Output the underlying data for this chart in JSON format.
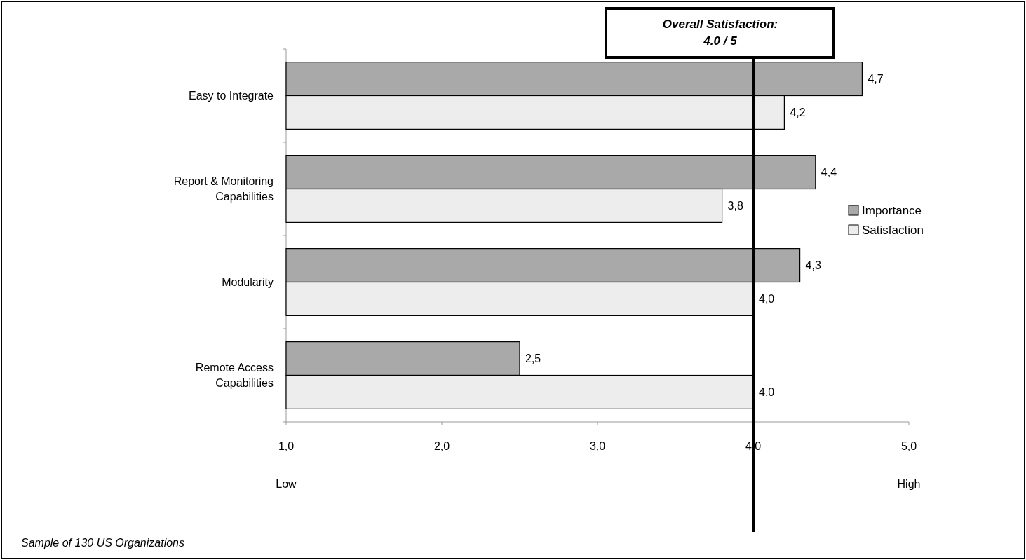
{
  "chart_data": {
    "type": "bar",
    "orientation": "horizontal",
    "categories": [
      "Easy to Integrate",
      "Report & Monitoring Capabilities",
      "Modularity",
      "Remote Access Capabilities"
    ],
    "series": [
      {
        "name": "Importance",
        "color": "#a9a9a9",
        "values": [
          4.7,
          4.4,
          4.3,
          2.5
        ],
        "value_labels": [
          "4,7",
          "4,4",
          "4,3",
          "2,5"
        ]
      },
      {
        "name": "Satisfaction",
        "color": "#ededed",
        "values": [
          4.2,
          3.8,
          4.0,
          4.0
        ],
        "value_labels": [
          "4,2",
          "3,8",
          "4,0",
          "4,0"
        ]
      }
    ],
    "xlim": [
      1,
      5
    ],
    "xticks": [
      {
        "value": 1,
        "label": "1,0"
      },
      {
        "value": 2,
        "label": "2,0"
      },
      {
        "value": 3,
        "label": "3,0"
      },
      {
        "value": 4,
        "label": "4,0"
      },
      {
        "value": 5,
        "label": "5,0"
      }
    ],
    "ref_lines": [
      {
        "axis": "x",
        "value": 4.0,
        "label": "Overall Satisfaction:\n4.0 / 5",
        "color": "#000000"
      }
    ],
    "legend": "right",
    "grid": false,
    "annotations": [
      "Low",
      "High",
      "Sample of 130 US Organizations"
    ]
  }
}
